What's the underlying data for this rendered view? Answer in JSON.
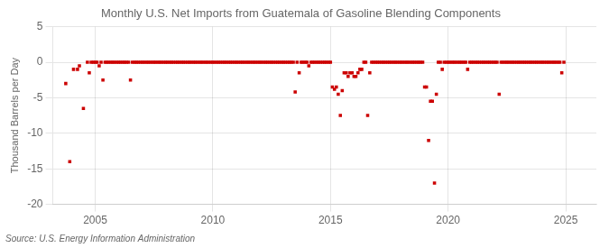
{
  "chart_data": {
    "type": "scatter",
    "title": "Monthly U.S. Net Imports from Guatemala of Gasoline Blending Components",
    "ylabel": "Thousand Barrels per Day",
    "source": "Source: U.S. Energy Information Administration",
    "color": "#cc0000",
    "marker": "square",
    "grid": true,
    "xlim": [
      2003.2,
      2026.3
    ],
    "ylim": [
      -20,
      5
    ],
    "xticks": [
      2005,
      2010,
      2015,
      2020,
      2025
    ],
    "yticks": [
      -20,
      -15,
      -10,
      -5,
      0,
      5
    ],
    "x": [
      2003.75,
      2003.92,
      2004.08,
      2004.25,
      2004.33,
      2004.5,
      2004.67,
      2004.75,
      2004.83,
      2004.92,
      2005.0,
      2005.08,
      2005.17,
      2005.25,
      2005.33,
      2005.42,
      2005.5,
      2005.58,
      2005.67,
      2005.75,
      2005.83,
      2005.92,
      2006.0,
      2006.08,
      2006.17,
      2006.25,
      2006.33,
      2006.42,
      2006.5,
      2006.58,
      2006.67,
      2006.75,
      2006.83,
      2006.92,
      2007.0,
      2007.08,
      2007.17,
      2007.25,
      2007.33,
      2007.42,
      2007.5,
      2007.58,
      2007.67,
      2007.75,
      2007.83,
      2007.92,
      2008.0,
      2008.08,
      2008.17,
      2008.25,
      2008.33,
      2008.42,
      2008.5,
      2008.58,
      2008.67,
      2008.75,
      2008.83,
      2008.92,
      2009.0,
      2009.08,
      2009.17,
      2009.25,
      2009.33,
      2009.42,
      2009.5,
      2009.58,
      2009.67,
      2009.75,
      2009.83,
      2009.92,
      2010.0,
      2010.08,
      2010.17,
      2010.25,
      2010.33,
      2010.42,
      2010.5,
      2010.58,
      2010.67,
      2010.75,
      2010.83,
      2010.92,
      2011.0,
      2011.08,
      2011.17,
      2011.25,
      2011.33,
      2011.42,
      2011.5,
      2011.58,
      2011.67,
      2011.75,
      2011.83,
      2011.92,
      2012.0,
      2012.08,
      2012.17,
      2012.25,
      2012.33,
      2012.42,
      2012.5,
      2012.58,
      2012.67,
      2012.75,
      2012.83,
      2012.92,
      2013.0,
      2013.08,
      2013.17,
      2013.25,
      2013.33,
      2013.42,
      2013.5,
      2013.58,
      2013.67,
      2013.75,
      2013.83,
      2013.92,
      2014.0,
      2014.08,
      2014.17,
      2014.25,
      2014.33,
      2014.42,
      2014.5,
      2014.58,
      2014.67,
      2014.75,
      2014.83,
      2014.92,
      2015.0,
      2015.08,
      2015.17,
      2015.25,
      2015.33,
      2015.42,
      2015.5,
      2015.58,
      2015.67,
      2015.75,
      2015.83,
      2015.92,
      2016.0,
      2016.08,
      2016.17,
      2016.25,
      2016.33,
      2016.42,
      2016.5,
      2016.58,
      2016.67,
      2016.75,
      2016.83,
      2016.92,
      2017.0,
      2017.08,
      2017.17,
      2017.25,
      2017.33,
      2017.42,
      2017.5,
      2017.58,
      2017.67,
      2017.75,
      2017.83,
      2017.92,
      2018.0,
      2018.08,
      2018.17,
      2018.25,
      2018.33,
      2018.42,
      2018.5,
      2018.58,
      2018.67,
      2018.75,
      2018.83,
      2018.92,
      2019.0,
      2019.08,
      2019.17,
      2019.25,
      2019.33,
      2019.42,
      2019.5,
      2019.58,
      2019.67,
      2019.75,
      2019.83,
      2019.92,
      2020.0,
      2020.08,
      2020.17,
      2020.25,
      2020.33,
      2020.42,
      2020.5,
      2020.58,
      2020.67,
      2020.75,
      2020.83,
      2020.92,
      2021.0,
      2021.08,
      2021.17,
      2021.25,
      2021.33,
      2021.42,
      2021.5,
      2021.58,
      2021.67,
      2021.75,
      2021.83,
      2021.92,
      2022.0,
      2022.08,
      2022.17,
      2022.25,
      2022.33,
      2022.42,
      2022.5,
      2022.58,
      2022.67,
      2022.75,
      2022.83,
      2022.92,
      2023.0,
      2023.08,
      2023.17,
      2023.25,
      2023.33,
      2023.42,
      2023.5,
      2023.58,
      2023.67,
      2023.75,
      2023.83,
      2023.92,
      2024.0,
      2024.08,
      2024.17,
      2024.25,
      2024.33,
      2024.42,
      2024.5,
      2024.58,
      2024.67,
      2024.75,
      2024.83,
      2024.92
    ],
    "values": [
      -3.0,
      -14.0,
      -1.0,
      -1.0,
      -0.5,
      -6.5,
      0.0,
      -1.5,
      0.0,
      0.0,
      0.0,
      0.0,
      -0.5,
      0.0,
      -2.5,
      0.0,
      0.0,
      0.0,
      0.0,
      0.0,
      0.0,
      0.0,
      0.0,
      0.0,
      0.0,
      0.0,
      0.0,
      0.0,
      -2.5,
      0.0,
      0.0,
      0.0,
      0.0,
      0.0,
      0.0,
      0.0,
      0.0,
      0.0,
      0.0,
      0.0,
      0.0,
      0.0,
      0.0,
      0.0,
      0.0,
      0.0,
      0.0,
      0.0,
      0.0,
      0.0,
      0.0,
      0.0,
      0.0,
      0.0,
      0.0,
      0.0,
      0.0,
      0.0,
      0.0,
      0.0,
      0.0,
      0.0,
      0.0,
      0.0,
      0.0,
      0.0,
      0.0,
      0.0,
      0.0,
      0.0,
      0.0,
      0.0,
      0.0,
      0.0,
      0.0,
      0.0,
      0.0,
      0.0,
      0.0,
      0.0,
      0.0,
      0.0,
      0.0,
      0.0,
      0.0,
      0.0,
      0.0,
      0.0,
      0.0,
      0.0,
      0.0,
      0.0,
      0.0,
      0.0,
      0.0,
      0.0,
      0.0,
      0.0,
      0.0,
      0.0,
      0.0,
      0.0,
      0.0,
      0.0,
      0.0,
      0.0,
      0.0,
      0.0,
      0.0,
      0.0,
      0.0,
      0.0,
      -4.2,
      0.0,
      -1.5,
      0.0,
      0.0,
      0.0,
      0.0,
      -0.5,
      0.0,
      0.0,
      0.0,
      0.0,
      0.0,
      0.0,
      0.0,
      0.0,
      0.0,
      0.0,
      0.0,
      -3.5,
      -3.8,
      -3.5,
      -4.5,
      -7.5,
      -4.0,
      -1.5,
      -1.5,
      -2.0,
      -1.5,
      -1.5,
      -2.0,
      -2.0,
      -1.5,
      -1.0,
      -1.0,
      0.0,
      0.0,
      -7.5,
      -1.5,
      0.0,
      0.0,
      0.0,
      0.0,
      0.0,
      0.0,
      0.0,
      0.0,
      0.0,
      0.0,
      0.0,
      0.0,
      0.0,
      0.0,
      0.0,
      0.0,
      0.0,
      0.0,
      0.0,
      0.0,
      0.0,
      0.0,
      0.0,
      0.0,
      0.0,
      0.0,
      0.0,
      -3.5,
      -3.5,
      -11.0,
      -5.5,
      -5.5,
      -17.0,
      -4.5,
      0.0,
      0.0,
      -1.0,
      0.0,
      0.0,
      0.0,
      0.0,
      0.0,
      0.0,
      0.0,
      0.0,
      0.0,
      0.0,
      0.0,
      0.0,
      -1.0,
      0.0,
      0.0,
      0.0,
      0.0,
      0.0,
      0.0,
      0.0,
      0.0,
      0.0,
      0.0,
      0.0,
      0.0,
      0.0,
      0.0,
      0.0,
      -4.5,
      0.0,
      0.0,
      0.0,
      0.0,
      0.0,
      0.0,
      0.0,
      0.0,
      0.0,
      0.0,
      0.0,
      0.0,
      0.0,
      0.0,
      0.0,
      0.0,
      0.0,
      0.0,
      0.0,
      0.0,
      0.0,
      0.0,
      0.0,
      0.0,
      0.0,
      0.0,
      0.0,
      0.0,
      0.0,
      0.0,
      0.0,
      -1.5,
      0.0
    ]
  }
}
